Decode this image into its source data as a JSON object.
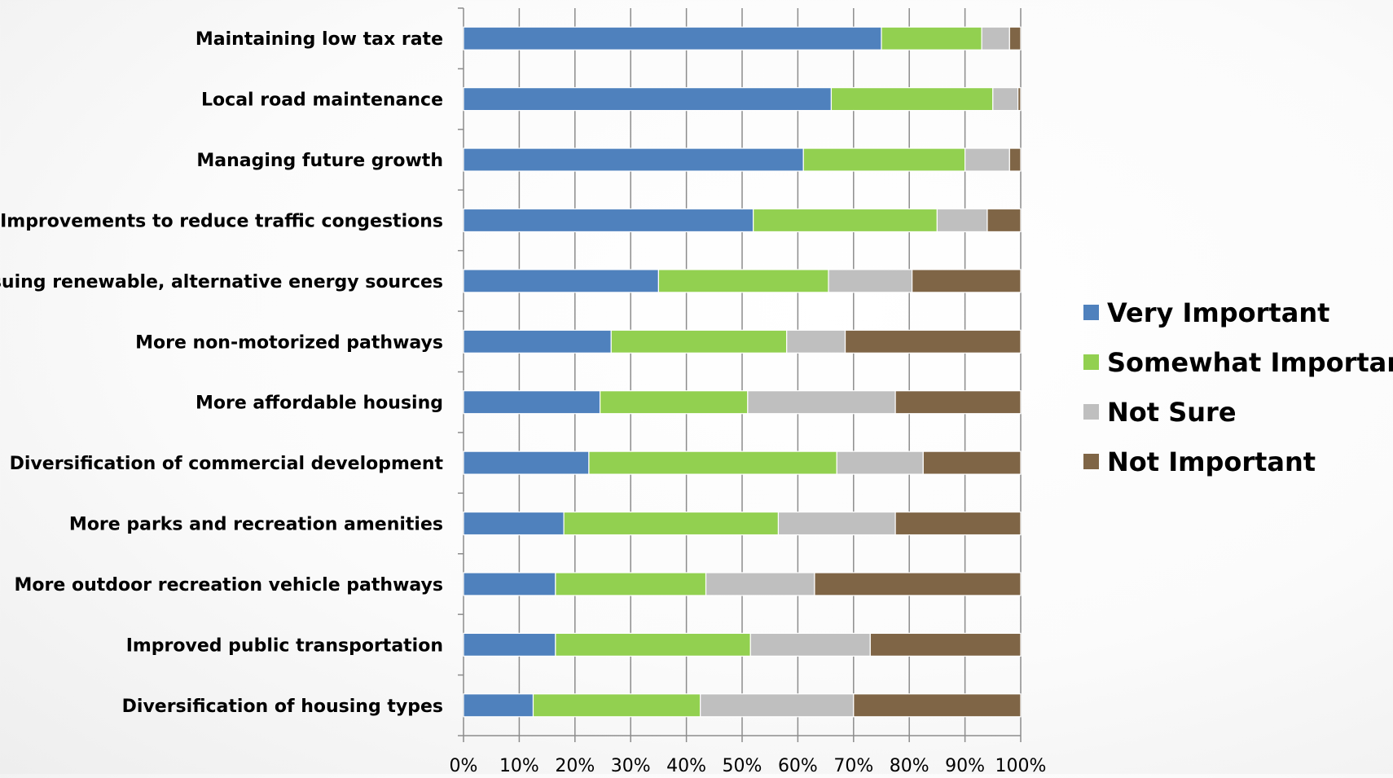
{
  "chart_data": {
    "type": "bar",
    "orientation": "horizontal",
    "stacked": true,
    "percent_stacked": true,
    "categories": [
      "Maintaining low tax rate",
      "Local road maintenance",
      "Managing future growth",
      "Improvements to reduce traffic congestions",
      "Pursuing renewable, alternative energy sources",
      "More non-motorized pathways",
      "More affordable housing",
      "Diversification of commercial development",
      "More parks and recreation amenities",
      "More outdoor recreation vehicle pathways",
      "Improved public transportation",
      "Diversification of housing types"
    ],
    "series": [
      {
        "name": "Very Important",
        "color": "#4F81BD",
        "values": [
          75,
          66,
          61,
          52,
          35,
          26.5,
          24.5,
          22.5,
          18,
          16.5,
          16.5,
          12.5
        ]
      },
      {
        "name": "Somewhat Important",
        "color": "#92D050",
        "values": [
          18,
          29,
          29,
          33,
          30.5,
          31.5,
          26.5,
          44.5,
          38.5,
          27,
          35,
          30
        ]
      },
      {
        "name": "Not Sure",
        "color": "#BFBFBF",
        "values": [
          5,
          4.5,
          8,
          9,
          15,
          10.5,
          26.5,
          15.5,
          21,
          19.5,
          21.5,
          27.5
        ]
      },
      {
        "name": "Not Important",
        "color": "#7F6546",
        "values": [
          2,
          0.5,
          2,
          6,
          19.5,
          31.5,
          22.5,
          17.5,
          22.5,
          37,
          27,
          30
        ]
      }
    ],
    "x_ticks": [
      "0%",
      "10%",
      "20%",
      "30%",
      "40%",
      "50%",
      "60%",
      "70%",
      "80%",
      "90%",
      "100%"
    ],
    "xlim": [
      0,
      100
    ],
    "grid": "vertical",
    "legend_position": "right",
    "title": "",
    "xlabel": "",
    "ylabel": ""
  }
}
